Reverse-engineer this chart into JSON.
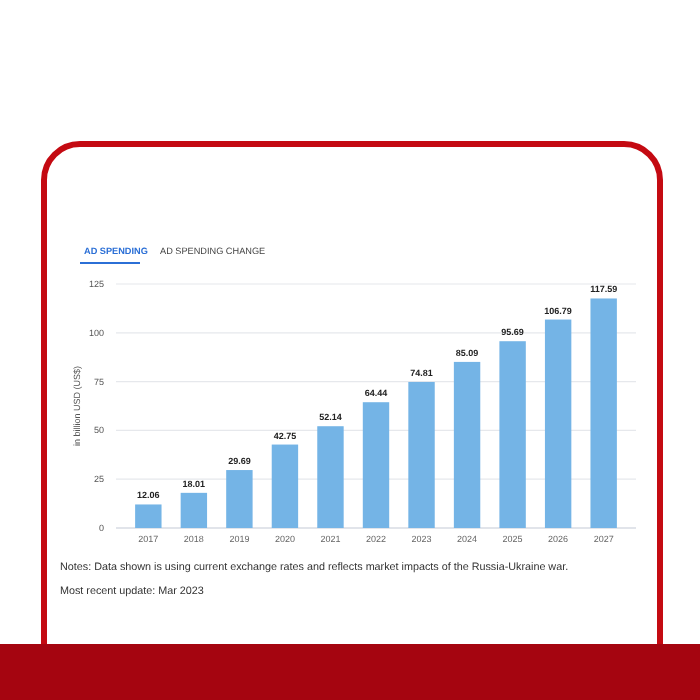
{
  "chart_data": {
    "type": "bar",
    "ylabel": "in billion USD (US$)",
    "categories": [
      "2017",
      "2018",
      "2019",
      "2020",
      "2021",
      "2022",
      "2023",
      "2024",
      "2025",
      "2026",
      "2027"
    ],
    "values": [
      12.06,
      18.01,
      29.69,
      42.75,
      52.14,
      64.44,
      74.81,
      85.09,
      95.69,
      106.79,
      117.59
    ],
    "color": "#74b4e6",
    "data_labels": true,
    "ylim": [
      0,
      125
    ],
    "yticks": [
      0,
      25,
      50,
      75,
      100,
      125
    ],
    "grid": "y",
    "annotations": [
      "AD SPENDING",
      "AD SPENDING CHANGE",
      "Notes: Data shown is using current exchange rates and reflects market impacts of the Russia-Ukraine war.",
      "Most recent update: Mar 2023"
    ]
  }
}
